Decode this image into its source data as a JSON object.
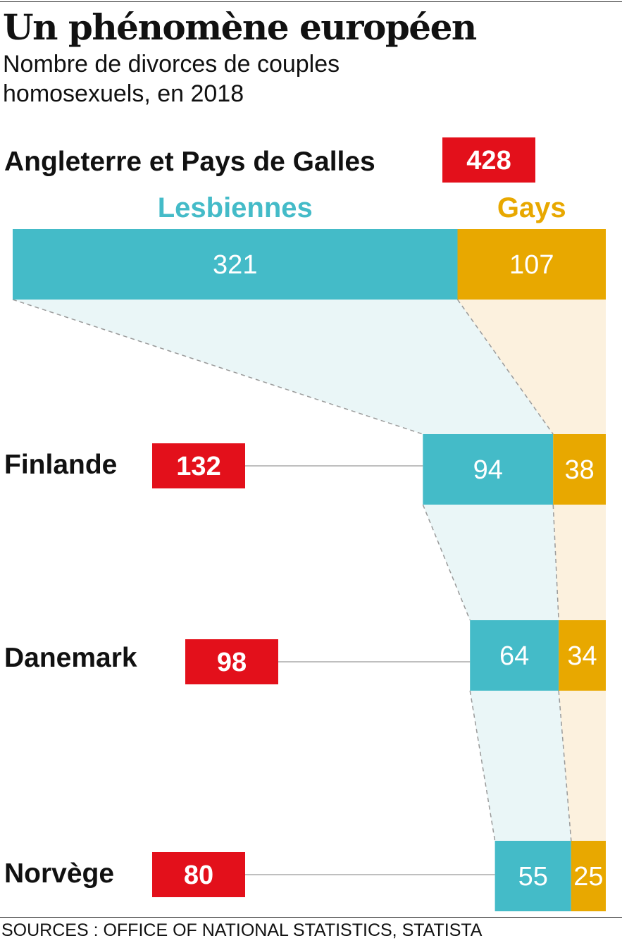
{
  "title": "Un phénomène européen",
  "subtitle": "Nombre de divorces de couples homosexuels, en 2018",
  "source": "SOURCES : OFFICE OF NATIONAL STATISTICS, STATISTA",
  "colors": {
    "lesbiennes": "#44BBC8",
    "gays": "#E8A800",
    "total": "#E3101B",
    "lesbiennes_fill": "#EAF6F7",
    "gays_fill": "#FCF1DE"
  },
  "chart_data": {
    "type": "bar",
    "orientation": "horizontal",
    "stacked": true,
    "title": "Un phénomène européen",
    "subtitle": "Nombre de divorces de couples homosexuels, en 2018",
    "legend": [
      "Lesbiennes",
      "Gays"
    ],
    "legend_placement": "top",
    "categories": [
      "Angleterre et Pays de Galles",
      "Finlande",
      "Danemark",
      "Norvège"
    ],
    "totals": [
      428,
      132,
      98,
      80
    ],
    "series": [
      {
        "name": "Lesbiennes",
        "values": [
          321,
          94,
          64,
          55
        ]
      },
      {
        "name": "Gays",
        "values": [
          107,
          38,
          34,
          25
        ]
      }
    ],
    "grid": false
  }
}
